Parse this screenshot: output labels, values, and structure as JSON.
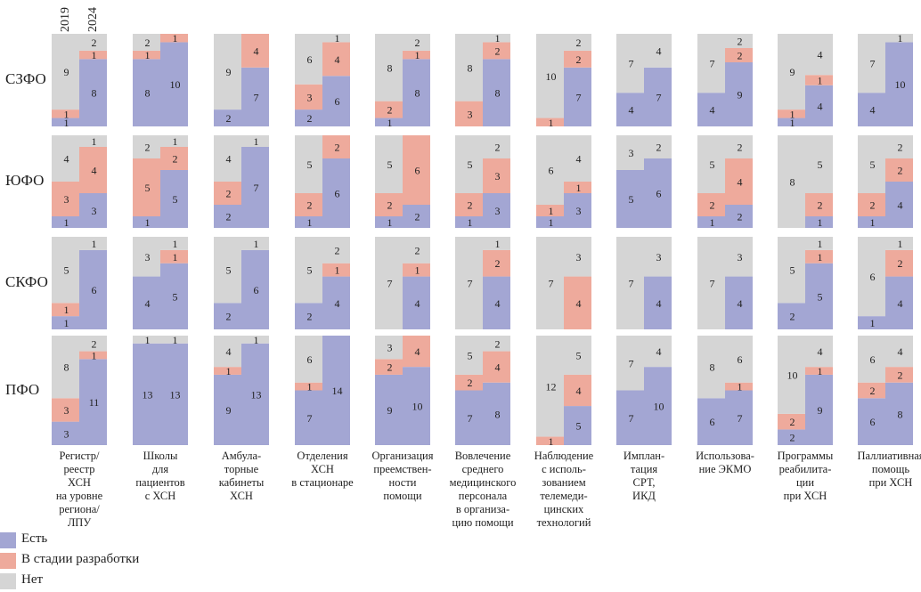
{
  "chart_data": {
    "type": "bar",
    "years": [
      "2019",
      "2024"
    ],
    "regions": [
      "СЗФО",
      "ЮФО",
      "СКФО",
      "ПФО"
    ],
    "categories": [
      [
        "Регистр/",
        "реестр",
        "ХСН",
        "на уровне",
        "региона/",
        "ЛПУ"
      ],
      [
        "Школы",
        "для",
        "пациентов",
        "с ХСН"
      ],
      [
        "Амбула-",
        "торные",
        "кабинеты",
        "ХСН"
      ],
      [
        "Отделения",
        "ХСН",
        "в стационаре"
      ],
      [
        "Организация",
        "преемствен-",
        "ности",
        "помощи"
      ],
      [
        "Вовлечение",
        "среднего",
        "медицинского",
        "персонала",
        "в организа-",
        "цию помощи"
      ],
      [
        "Наблюдение",
        "с исполь-",
        "зованием",
        "телемеди-",
        "цинских",
        "технологий"
      ],
      [
        "Имплан-",
        "тация",
        "СРТ,",
        "ИКД"
      ],
      [
        "Использова-",
        "ние ЭКМО"
      ],
      [
        "Программы",
        "реабилита-",
        "ции",
        "при ХСН"
      ],
      [
        "Паллиативная помощь",
        "при ХСН"
      ]
    ],
    "series": [
      {
        "name": "Есть",
        "color": "#a3a6d3"
      },
      {
        "name": "В стадии разработки",
        "color": "#eeaa9c"
      },
      {
        "name": "Нет",
        "color": "#d5d5d5"
      }
    ],
    "values": [
      [
        [
          [
            1,
            1,
            9
          ],
          [
            8,
            1,
            2
          ]
        ],
        [
          [
            8,
            1,
            2
          ],
          [
            10,
            1,
            0
          ]
        ],
        [
          [
            2,
            0,
            9
          ],
          [
            7,
            4,
            0
          ]
        ],
        [
          [
            2,
            3,
            6
          ],
          [
            6,
            4,
            1
          ]
        ],
        [
          [
            1,
            2,
            8
          ],
          [
            8,
            1,
            2
          ]
        ],
        [
          [
            0,
            3,
            8
          ],
          [
            8,
            2,
            1
          ]
        ],
        [
          [
            0,
            1,
            10
          ],
          [
            7,
            2,
            2
          ]
        ],
        [
          [
            4,
            0,
            7
          ],
          [
            7,
            0,
            4
          ]
        ],
        [
          [
            4,
            0,
            7
          ],
          [
            9,
            2,
            2
          ]
        ],
        [
          [
            1,
            1,
            9
          ],
          [
            4,
            1,
            4
          ]
        ],
        [
          [
            4,
            0,
            7
          ],
          [
            10,
            0,
            1
          ]
        ]
      ],
      [
        [
          [
            1,
            3,
            4
          ],
          [
            3,
            4,
            1
          ]
        ],
        [
          [
            1,
            5,
            2
          ],
          [
            5,
            2,
            1
          ]
        ],
        [
          [
            2,
            2,
            4
          ],
          [
            7,
            0,
            1
          ]
        ],
        [
          [
            1,
            2,
            5
          ],
          [
            6,
            2,
            0
          ]
        ],
        [
          [
            1,
            2,
            5
          ],
          [
            2,
            6,
            0
          ]
        ],
        [
          [
            1,
            2,
            5
          ],
          [
            3,
            3,
            2
          ]
        ],
        [
          [
            1,
            1,
            6
          ],
          [
            3,
            1,
            4
          ]
        ],
        [
          [
            5,
            0,
            3
          ],
          [
            6,
            0,
            2
          ]
        ],
        [
          [
            1,
            2,
            5
          ],
          [
            2,
            4,
            2
          ]
        ],
        [
          [
            0,
            0,
            8
          ],
          [
            1,
            2,
            5
          ]
        ],
        [
          [
            1,
            2,
            5
          ],
          [
            4,
            2,
            2
          ]
        ]
      ],
      [
        [
          [
            1,
            1,
            5
          ],
          [
            6,
            0,
            1
          ]
        ],
        [
          [
            4,
            0,
            3
          ],
          [
            5,
            1,
            1
          ]
        ],
        [
          [
            2,
            0,
            5
          ],
          [
            6,
            0,
            1
          ]
        ],
        [
          [
            2,
            0,
            5
          ],
          [
            4,
            1,
            2
          ]
        ],
        [
          [
            0,
            0,
            7
          ],
          [
            4,
            1,
            2
          ]
        ],
        [
          [
            0,
            0,
            7
          ],
          [
            4,
            2,
            1
          ]
        ],
        [
          [
            0,
            0,
            7
          ],
          [
            0,
            4,
            3
          ]
        ],
        [
          [
            0,
            0,
            7
          ],
          [
            4,
            0,
            3
          ]
        ],
        [
          [
            0,
            0,
            7
          ],
          [
            4,
            0,
            3
          ]
        ],
        [
          [
            2,
            0,
            5
          ],
          [
            5,
            1,
            1
          ]
        ],
        [
          [
            1,
            0,
            6
          ],
          [
            4,
            2,
            1
          ]
        ]
      ],
      [
        [
          [
            3,
            3,
            8
          ],
          [
            11,
            1,
            2
          ]
        ],
        [
          [
            13,
            0,
            1
          ],
          [
            13,
            0,
            1
          ]
        ],
        [
          [
            9,
            1,
            4
          ],
          [
            13,
            0,
            1
          ]
        ],
        [
          [
            7,
            1,
            6
          ],
          [
            14,
            0,
            0
          ]
        ],
        [
          [
            9,
            2,
            3
          ],
          [
            10,
            4,
            0
          ]
        ],
        [
          [
            7,
            2,
            5
          ],
          [
            8,
            4,
            2
          ]
        ],
        [
          [
            0,
            1,
            12
          ],
          [
            5,
            4,
            5
          ]
        ],
        [
          [
            7,
            0,
            7
          ],
          [
            10,
            0,
            4
          ]
        ],
        [
          [
            6,
            0,
            8
          ],
          [
            7,
            1,
            6
          ]
        ],
        [
          [
            2,
            2,
            10
          ],
          [
            9,
            1,
            4
          ]
        ],
        [
          [
            6,
            2,
            6
          ],
          [
            8,
            2,
            4
          ]
        ]
      ]
    ]
  }
}
